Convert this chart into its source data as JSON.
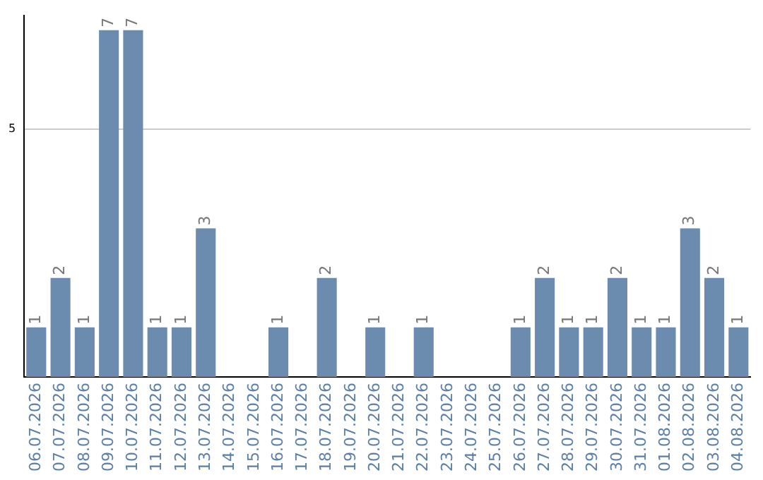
{
  "chart_data": {
    "type": "bar",
    "categories": [
      "06.07.2026",
      "07.07.2026",
      "08.07.2026",
      "09.07.2026",
      "10.07.2026",
      "11.07.2026",
      "12.07.2026",
      "13.07.2026",
      "14.07.2026",
      "15.07.2026",
      "16.07.2026",
      "17.07.2026",
      "18.07.2026",
      "19.07.2026",
      "20.07.2026",
      "21.07.2026",
      "22.07.2026",
      "23.07.2026",
      "24.07.2026",
      "25.07.2026",
      "26.07.2026",
      "27.07.2026",
      "28.07.2026",
      "29.07.2026",
      "30.07.2026",
      "31.07.2026",
      "01.08.2026",
      "02.08.2026",
      "03.08.2026",
      "04.08.2026"
    ],
    "values": [
      1,
      2,
      1,
      7,
      7,
      1,
      1,
      3,
      0,
      0,
      1,
      0,
      2,
      0,
      1,
      0,
      1,
      0,
      0,
      0,
      1,
      2,
      1,
      1,
      2,
      1,
      1,
      3,
      2,
      1
    ],
    "value_labels": [
      "1",
      "2",
      "1",
      "7",
      "7",
      "1",
      "1",
      "3",
      null,
      null,
      "1",
      null,
      "2",
      null,
      "1",
      null,
      "1",
      null,
      null,
      null,
      "1",
      "2",
      "1",
      "1",
      "2",
      "1",
      "1",
      "3",
      "2",
      "1"
    ],
    "color": "#6b8cae",
    "ylim": [
      0,
      7.3
    ],
    "yticks": [
      5
    ],
    "grid": "y",
    "legend": false
  }
}
